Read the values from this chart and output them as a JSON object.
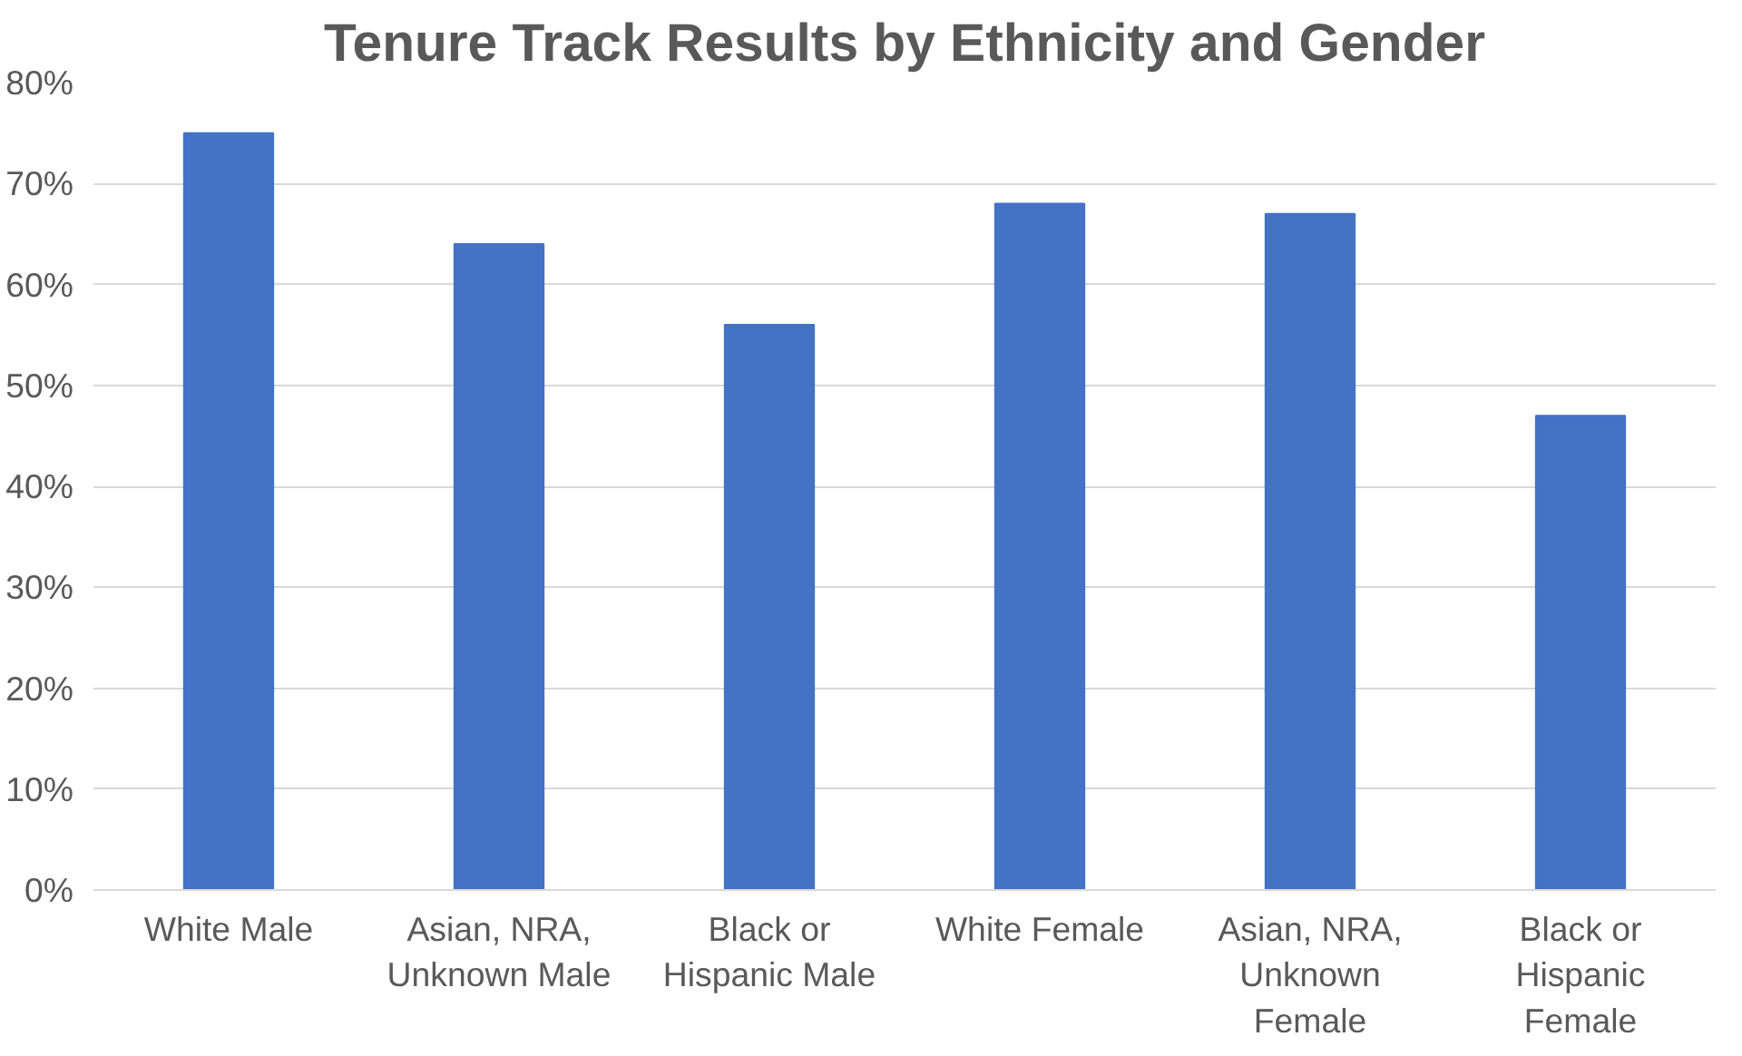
{
  "chart_data": {
    "type": "bar",
    "title": "Tenure Track Results by Ethnicity and Gender",
    "categories": [
      "White Male",
      "Asian, NRA, Unknown Male",
      "Black or Hispanic Male",
      "White Female",
      "Asian, NRA, Unknown Female",
      "Black or Hispanic Female"
    ],
    "values": [
      75,
      64,
      56,
      68,
      67,
      47
    ],
    "color": "#4472c4",
    "ylim": [
      0,
      80
    ],
    "yticks": [
      {
        "value": 0,
        "label": "0%"
      },
      {
        "value": 10,
        "label": "10%"
      },
      {
        "value": 20,
        "label": "20%"
      },
      {
        "value": 30,
        "label": "30%"
      },
      {
        "value": 40,
        "label": "40%"
      },
      {
        "value": 50,
        "label": "50%"
      },
      {
        "value": 60,
        "label": "60%"
      },
      {
        "value": 70,
        "label": "70%"
      },
      {
        "value": 80,
        "label": "80%"
      }
    ],
    "grid": "y"
  }
}
